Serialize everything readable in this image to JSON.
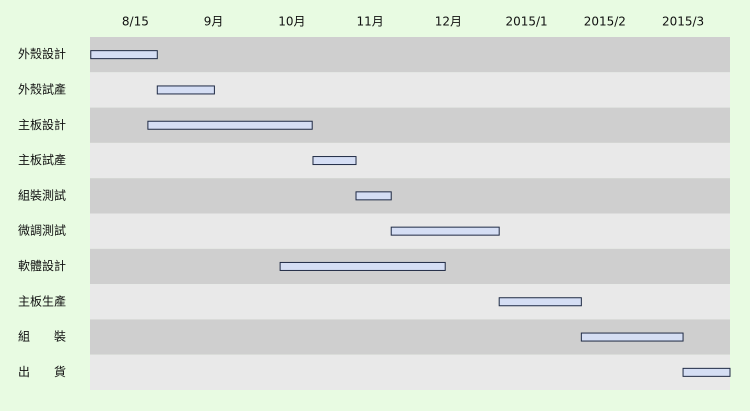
{
  "chart_data": {
    "type": "gantt",
    "categories": [
      "外殼設計",
      "外殼試產",
      "主板設計",
      "主板試產",
      "組裝測試",
      "微調測試",
      "軟體設計",
      "主板生產",
      "組　　裝",
      "出　　貨"
    ],
    "start": [
      7.43,
      8.28,
      8.16,
      10.27,
      10.82,
      11.27,
      9.85,
      12.65,
      13.7,
      15.0
    ],
    "end": [
      8.28,
      9.01,
      10.26,
      10.82,
      11.27,
      12.65,
      11.96,
      13.7,
      15.0,
      15.6
    ],
    "color": "#d5def4",
    "xlim": [
      7.42,
      15.6
    ],
    "xticks": [
      {
        "value": 8,
        "label": "8/15"
      },
      {
        "value": 9,
        "label": "9月"
      },
      {
        "value": 10,
        "label": "10月"
      },
      {
        "value": 11,
        "label": "11月"
      },
      {
        "value": 12,
        "label": "12月"
      },
      {
        "value": 13,
        "label": "2015/1"
      },
      {
        "value": 14,
        "label": "2015/2"
      },
      {
        "value": 15,
        "label": "2015/3"
      }
    ]
  }
}
